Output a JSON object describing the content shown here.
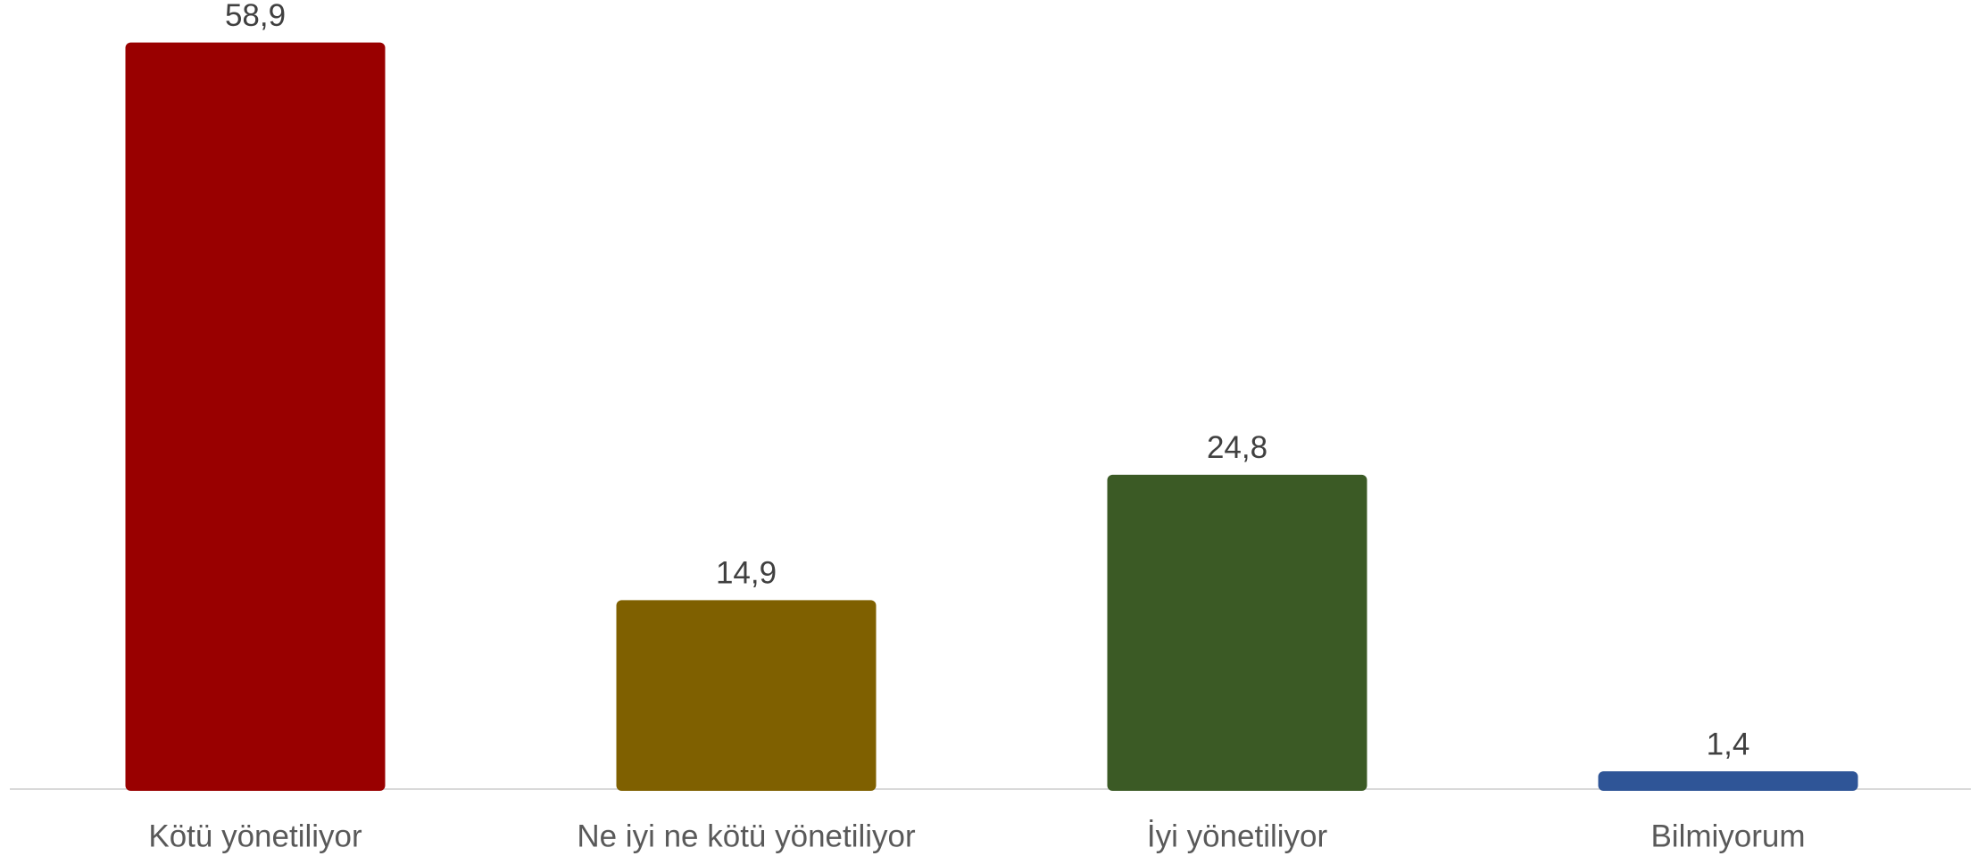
{
  "chart_data": {
    "type": "bar",
    "categories": [
      "Kötü yönetiliyor",
      "Ne iyi ne kötü yönetiliyor",
      "İyi yönetiliyor",
      "Bilmiyorum"
    ],
    "values": [
      58.9,
      14.9,
      24.8,
      1.4
    ],
    "value_labels": [
      "58,9",
      "14,9",
      "24,8",
      "1,4"
    ],
    "colors": [
      "#990000",
      "#7f6000",
      "#3b5a25",
      "#2f5597"
    ]
  }
}
